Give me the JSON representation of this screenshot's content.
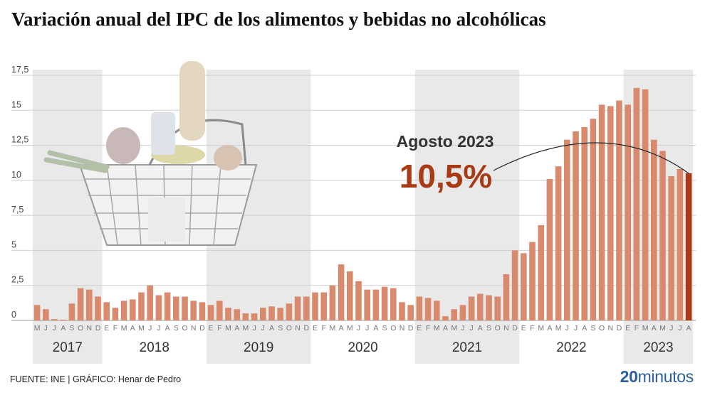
{
  "title": "Variación anual del IPC de los alimentos y bebidas no alcohólicas",
  "footer": {
    "source": "FUENTE: INE  |  GRÁFICO: Henar de Pedro",
    "brand_num": "20",
    "brand_word": "minutos"
  },
  "annotation": {
    "label": "Agosto 2023",
    "value": "10,5%"
  },
  "colors": {
    "bar": "#d98a6c",
    "highlight": "#a83a15",
    "shade": "#e9e9e9",
    "grid": "#cfcfcf",
    "text": "#333333"
  },
  "chart_data": {
    "type": "bar",
    "title": "Variación anual del IPC de los alimentos y bebidas no alcohólicas",
    "xlabel": "",
    "ylabel": "",
    "ylim": [
      0,
      17.5
    ],
    "y_ticks": [
      "0",
      "2,5",
      "5",
      "7,5",
      "10",
      "12,5",
      "15",
      "17,5"
    ],
    "y_tick_values": [
      0,
      2.5,
      5,
      7.5,
      10,
      12.5,
      15,
      17.5
    ],
    "grid": true,
    "years": [
      {
        "label": "2017",
        "months": 8
      },
      {
        "label": "2018",
        "months": 12
      },
      {
        "label": "2019",
        "months": 12
      },
      {
        "label": "2020",
        "months": 12
      },
      {
        "label": "2021",
        "months": 12
      },
      {
        "label": "2022",
        "months": 12
      },
      {
        "label": "2023",
        "months": 8
      }
    ],
    "categories": [
      "M",
      "J",
      "J",
      "A",
      "S",
      "O",
      "N",
      "D",
      "E",
      "F",
      "M",
      "A",
      "M",
      "J",
      "J",
      "A",
      "S",
      "O",
      "N",
      "D",
      "E",
      "F",
      "M",
      "A",
      "M",
      "J",
      "J",
      "A",
      "S",
      "O",
      "N",
      "D",
      "E",
      "F",
      "M",
      "A",
      "M",
      "J",
      "J",
      "A",
      "S",
      "O",
      "N",
      "D",
      "E",
      "F",
      "M",
      "A",
      "M",
      "J",
      "J",
      "A",
      "S",
      "O",
      "N",
      "D",
      "E",
      "F",
      "M",
      "A",
      "M",
      "J",
      "J",
      "A",
      "S",
      "O",
      "N",
      "D",
      "E",
      "F",
      "M",
      "A",
      "M",
      "J",
      "J",
      "A"
    ],
    "values": [
      1.1,
      0.8,
      0.1,
      0.0,
      1.2,
      2.3,
      2.2,
      1.7,
      1.3,
      0.9,
      1.4,
      1.5,
      2.0,
      2.5,
      1.8,
      2.0,
      1.7,
      1.7,
      1.4,
      1.3,
      1.1,
      1.4,
      0.9,
      0.8,
      0.5,
      0.5,
      0.9,
      1.0,
      0.9,
      1.2,
      1.7,
      1.7,
      2.0,
      2.0,
      2.5,
      4.0,
      3.5,
      2.8,
      2.2,
      2.2,
      2.4,
      2.3,
      1.3,
      1.1,
      1.7,
      1.6,
      1.4,
      0.3,
      0.8,
      1.1,
      1.7,
      1.9,
      1.8,
      1.7,
      3.3,
      5.0,
      4.8,
      5.6,
      6.8,
      10.1,
      11.0,
      12.9,
      13.5,
      13.8,
      14.4,
      15.4,
      15.3,
      15.7,
      15.4,
      16.6,
      16.5,
      12.9,
      12.1,
      10.3,
      10.8,
      10.5
    ],
    "highlight_index": 75
  }
}
